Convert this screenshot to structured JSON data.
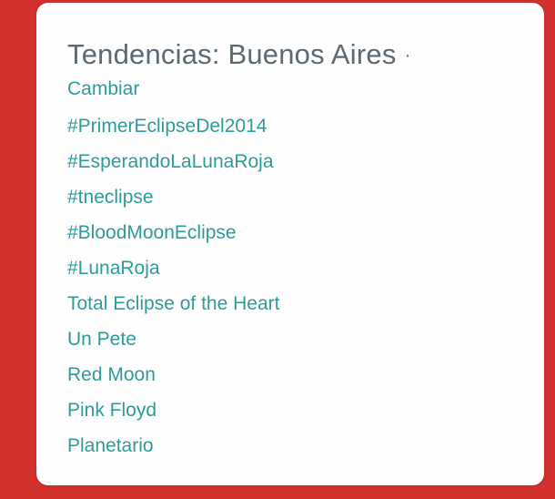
{
  "theme": {
    "background_color": "#d2312d",
    "card_color": "#fffefe",
    "title_color": "#5c6a74",
    "link_color": "#2e9b9b"
  },
  "panel": {
    "title": "Tendencias: Buenos Aires",
    "separator": "·",
    "change_link_label": "Cambiar",
    "trends": [
      "#PrimerEclipseDel2014",
      "#EsperandoLaLunaRoja",
      "#tneclipse",
      "#BloodMoonEclipse",
      "#LunaRoja",
      "Total Eclipse of the Heart",
      "Un Pete",
      "Red Moon",
      "Pink Floyd",
      "Planetario"
    ]
  }
}
